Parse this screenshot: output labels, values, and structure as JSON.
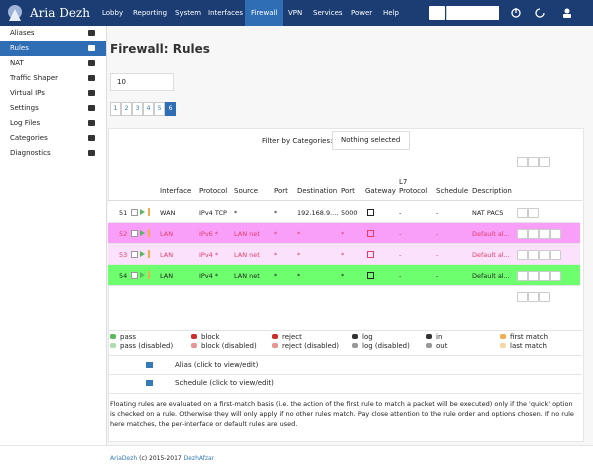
{
  "navbar": {
    "brand": "Aria Dezh",
    "items": [
      "Lobby",
      "Reporting",
      "System",
      "Interfaces",
      "Firewall",
      "VPN",
      "Services",
      "Power",
      "Help"
    ],
    "active": 4
  },
  "sidebar": {
    "items": [
      "Aliases",
      "Rules",
      "NAT",
      "Traffic Shaper",
      "Virtual IPs",
      "Settings",
      "Log Files",
      "Categories",
      "Diagnostics"
    ],
    "active": 1
  },
  "page": {
    "title": "Firewall: Rules",
    "page_size": "10",
    "pages": [
      1,
      2,
      3,
      4,
      5,
      6
    ],
    "current_page": 6,
    "filter_label": "Filter by Categories:",
    "filter_value": "Nothing selected"
  },
  "table": {
    "headers": [
      "Interface",
      "Protocol",
      "Source",
      "Port",
      "Destination",
      "Port",
      "Gateway",
      "L7 Protocol",
      "Schedule",
      "Description"
    ],
    "rows": [
      {
        "number": "51",
        "interface": "WAN",
        "protocol": "IPv4 TCP",
        "source": "*",
        "source_port": "*",
        "destination": "192.168.9....",
        "destination_port": "5000",
        "l7_protocol": "-",
        "schedule": "-",
        "description": "NAT PACS"
      },
      {
        "number": "52",
        "interface": "LAN",
        "protocol": "IPv6 *",
        "source": "LAN net",
        "source_port": "*",
        "destination": "*",
        "destination_port": "*",
        "l7_protocol": "-",
        "schedule": "-",
        "description": "Default al..."
      },
      {
        "number": "53",
        "interface": "LAN",
        "protocol": "IPv4 *",
        "source": "LAN net",
        "source_port": "*",
        "destination": "*",
        "destination_port": "*",
        "l7_protocol": "-",
        "schedule": "-",
        "description": "Default al..."
      },
      {
        "number": "54",
        "interface": "LAN",
        "protocol": "IPv4 *",
        "source": "LAN net",
        "source_port": "*",
        "destination": "*",
        "destination_port": "*",
        "l7_protocol": "-",
        "schedule": "-",
        "description": "Default al..."
      }
    ]
  },
  "legend": {
    "items": [
      "pass",
      "pass (disabled)",
      "block",
      "block (disabled)",
      "reject",
      "reject (disabled)",
      "log",
      "log (disabled)",
      "in",
      "out",
      "first match",
      "last match"
    ],
    "alias_note": "Alias (click to view/edit)",
    "schedule_note": "Schedule (click to view/edit)",
    "info": "Floating rules are evaluated on a first-match basis (i.e. the action of the first rule to match a packet will be executed) only if the 'quick' option is checked on a rule. Otherwise they will only apply if no other rules match. Pay close attention to the rule order and options chosen. If no rule here matches, the per-interface or default rules are used."
  },
  "footer": {
    "brand": "AriaDezh",
    "copyright": "(c) 2015-2017",
    "company": "DezhAfzar"
  }
}
